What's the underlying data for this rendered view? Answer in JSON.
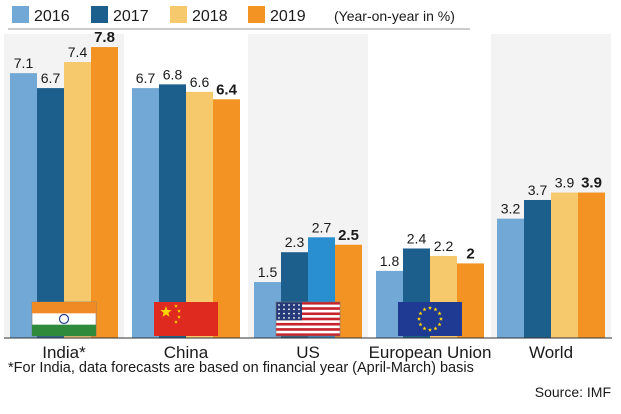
{
  "chart_data": {
    "type": "bar",
    "categories": [
      "India*",
      "China",
      "US",
      "European Union",
      "World"
    ],
    "series": [
      {
        "name": "2016",
        "color": "#72a8d5",
        "values": [
          7.1,
          6.7,
          1.5,
          1.8,
          3.2
        ]
      },
      {
        "name": "2017",
        "color": "#1c5f8c",
        "values": [
          6.7,
          6.8,
          2.3,
          2.4,
          3.7
        ]
      },
      {
        "name": "2018",
        "color": "#f7c96d",
        "values": [
          7.4,
          6.6,
          2.7,
          2.2,
          3.9
        ]
      },
      {
        "name": "2019",
        "color": "#f29324",
        "values": [
          7.8,
          6.4,
          2.5,
          2.0,
          3.9
        ]
      }
    ],
    "value_labels": [
      [
        "7.1",
        "6.7",
        "7.4",
        "7.8"
      ],
      [
        "6.7",
        "6.8",
        "6.6",
        "6.4"
      ],
      [
        "1.5",
        "2.3",
        "2.7",
        "2.5"
      ],
      [
        "1.8",
        "2.4",
        "2.2",
        "2"
      ],
      [
        "3.2",
        "3.7",
        "3.9",
        "3.9"
      ]
    ],
    "bold_series": "2019",
    "us_2018_color": "#2a8fd0",
    "legend_note": "(Year-on-year in %)",
    "ylim": [
      0,
      8
    ],
    "grid": false,
    "legend_position": "top",
    "flags": [
      "india-flag",
      "china-flag",
      "us-flag",
      "eu-flag",
      null
    ]
  },
  "footnote": "*For India, data forecasts are based on financial year (April-March) basis",
  "source": "Source: IMF"
}
